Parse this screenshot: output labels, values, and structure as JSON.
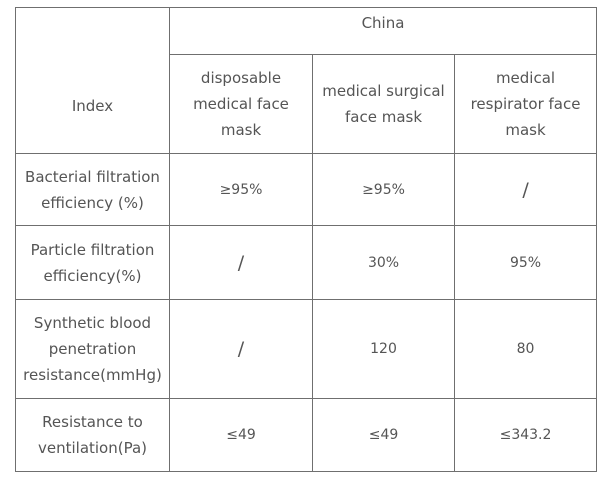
{
  "table": {
    "index_header": "Index",
    "country_header": "China",
    "mask_types": [
      "disposable medical face mask",
      "medical surgical face mask",
      "medical respirator face mask"
    ],
    "rows": [
      {
        "label": "Bacterial filtration efficiency (%)",
        "values": [
          "≥95%",
          "≥95%",
          "/"
        ]
      },
      {
        "label": "Particle filtration efficiency(%)",
        "values": [
          "/",
          "30%",
          "95%"
        ]
      },
      {
        "label": "Synthetic blood penetration resistance(mmHg)",
        "values": [
          "/",
          "120",
          "80"
        ]
      },
      {
        "label": "Resistance to ventilation(Pa)",
        "values": [
          "≤49",
          "≤49",
          "≤343.2"
        ]
      }
    ]
  }
}
